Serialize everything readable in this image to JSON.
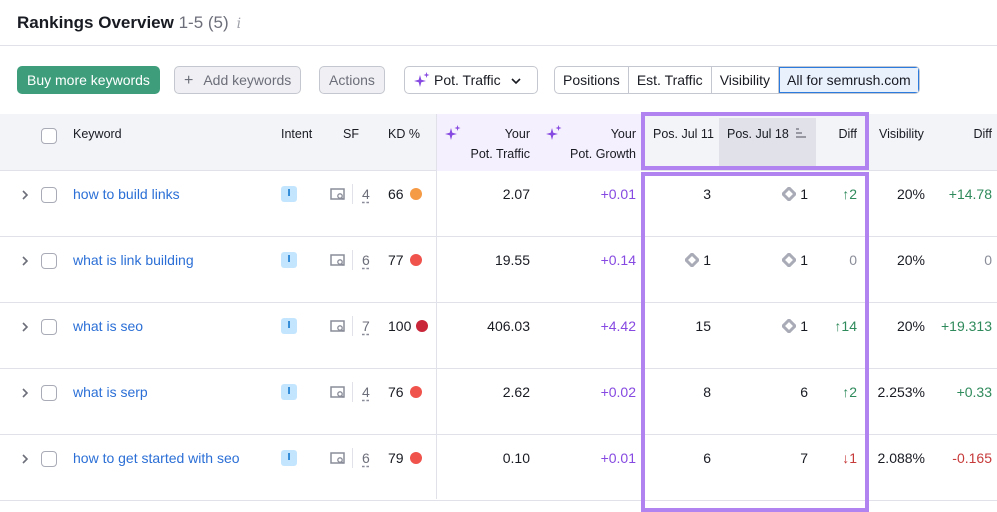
{
  "header": {
    "title": "Rankings Overview",
    "count": "1-5 (5)",
    "info_icon": "i"
  },
  "toolbar": {
    "buy": "Buy more keywords",
    "add": "Add keywords",
    "add_icon": "+",
    "actions": "Actions",
    "metric": "Pot. Traffic",
    "segments": [
      "Positions",
      "Est. Traffic",
      "Visibility",
      "All for semrush.com"
    ],
    "active_segment": "All for semrush.com"
  },
  "columns": {
    "keyword": "Keyword",
    "intent": "Intent",
    "sf": "SF",
    "kd": "KD %",
    "pot_traffic": [
      "Your",
      "Pot. Traffic"
    ],
    "pot_growth": [
      "Your",
      "Pot. Growth"
    ],
    "pos1": "Pos. Jul 11",
    "pos2": "Pos. Jul 18",
    "diff": "Diff",
    "visibility": "Visibility",
    "vis_diff": "Diff"
  },
  "colors": {
    "accent_purple": "#b083f0",
    "green_button": "#3e9e7c",
    "link": "#2b6fd6"
  },
  "rows": [
    {
      "keyword": "how to build links",
      "intent": "I",
      "sf": "4",
      "kd": "66",
      "kd_color": "#f59a45",
      "pot_traffic": "2.07",
      "pot_growth": "+0.01",
      "pos1": "3",
      "pos1_icon": false,
      "pos2": "1",
      "pos2_icon": true,
      "diff": "↑2",
      "diff_dir": "up",
      "visibility": "20%",
      "vis_diff": "+14.78",
      "vis_dir": "up"
    },
    {
      "keyword": "what is link building",
      "intent": "I",
      "sf": "6",
      "kd": "77",
      "kd_color": "#f0534c",
      "pot_traffic": "19.55",
      "pot_growth": "+0.14",
      "pos1": "1",
      "pos1_icon": true,
      "pos2": "1",
      "pos2_icon": true,
      "diff": "0",
      "diff_dir": "none",
      "visibility": "20%",
      "vis_diff": "0",
      "vis_dir": "none"
    },
    {
      "keyword": "what is seo",
      "intent": "I",
      "sf": "7",
      "kd": "100",
      "kd_color": "#c9263a",
      "pot_traffic": "406.03",
      "pot_growth": "+4.42",
      "pos1": "15",
      "pos1_icon": false,
      "pos2": "1",
      "pos2_icon": true,
      "diff": "↑14",
      "diff_dir": "up",
      "visibility": "20%",
      "vis_diff": "+19.313",
      "vis_dir": "up"
    },
    {
      "keyword": "what is serp",
      "intent": "I",
      "sf": "4",
      "kd": "76",
      "kd_color": "#f0534c",
      "pot_traffic": "2.62",
      "pot_growth": "+0.02",
      "pos1": "8",
      "pos1_icon": false,
      "pos2": "6",
      "pos2_icon": false,
      "diff": "↑2",
      "diff_dir": "up",
      "visibility": "2.253%",
      "vis_diff": "+0.33",
      "vis_dir": "up"
    },
    {
      "keyword": "how to get started with seo",
      "intent": "I",
      "sf": "6",
      "kd": "79",
      "kd_color": "#f0534c",
      "pot_traffic": "0.10",
      "pot_growth": "+0.01",
      "pos1": "6",
      "pos1_icon": false,
      "pos2": "7",
      "pos2_icon": false,
      "diff": "↓1",
      "diff_dir": "down",
      "visibility": "2.088%",
      "vis_diff": "-0.165",
      "vis_dir": "down"
    }
  ]
}
